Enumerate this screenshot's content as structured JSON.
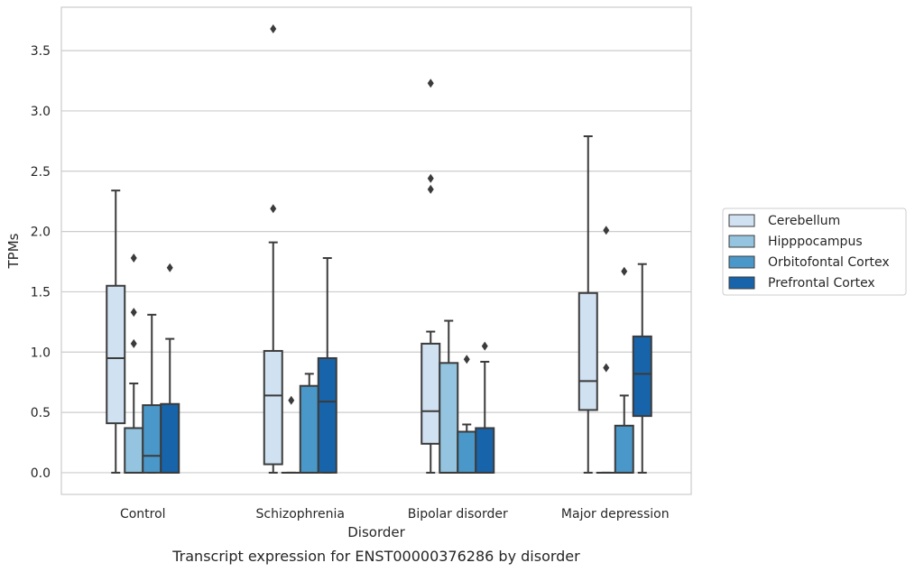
{
  "caption": "Transcript expression for ENST00000376286 by disorder",
  "chart_data": {
    "type": "box",
    "xlabel": "Disorder",
    "ylabel": "TPMs",
    "ylim": [
      -0.18,
      3.86
    ],
    "yticks": [
      "0.0",
      "0.5",
      "1.0",
      "1.5",
      "2.0",
      "2.5",
      "3.0",
      "3.5"
    ],
    "ytick_values": [
      0,
      0.5,
      1.0,
      1.5,
      2.0,
      2.5,
      3.0,
      3.5
    ],
    "grid": "horizontal",
    "legend_position": "right",
    "categories": [
      "Control",
      "Schizophrenia",
      "Bipolar disorder",
      "Major depression"
    ],
    "series": [
      {
        "name": "Cerebellum",
        "color": "#d0e1f2",
        "boxes": [
          {
            "whisker_low": 0.0,
            "q1": 0.41,
            "median": 0.95,
            "q3": 1.55,
            "whisker_high": 2.34,
            "outliers": []
          },
          {
            "whisker_low": 0.0,
            "q1": 0.07,
            "median": 0.64,
            "q3": 1.01,
            "whisker_high": 1.91,
            "outliers": [
              2.19,
              3.68
            ]
          },
          {
            "whisker_low": 0.0,
            "q1": 0.24,
            "median": 0.51,
            "q3": 1.07,
            "whisker_high": 1.17,
            "outliers": [
              2.35,
              2.44,
              3.23
            ]
          },
          {
            "whisker_low": 0.0,
            "q1": 0.52,
            "median": 0.76,
            "q3": 1.49,
            "whisker_high": 2.79,
            "outliers": []
          }
        ]
      },
      {
        "name": "Hipppocampus",
        "color": "#94c4df",
        "boxes": [
          {
            "whisker_low": 0.0,
            "q1": 0.0,
            "median": 0.0,
            "q3": 0.37,
            "whisker_high": 0.74,
            "outliers": [
              1.07,
              1.33,
              1.78
            ]
          },
          {
            "whisker_low": 0.0,
            "q1": 0.0,
            "median": 0.0,
            "q3": 0.0,
            "whisker_high": 0.0,
            "outliers": [
              0.6
            ]
          },
          {
            "whisker_low": 0.0,
            "q1": 0.0,
            "median": 0.0,
            "q3": 0.91,
            "whisker_high": 1.26,
            "outliers": []
          },
          {
            "whisker_low": 0.0,
            "q1": 0.0,
            "median": 0.0,
            "q3": 0.0,
            "whisker_high": 0.0,
            "outliers": [
              0.87,
              2.01
            ]
          }
        ]
      },
      {
        "name": "Orbitofontal Cortex",
        "color": "#4a98c9",
        "boxes": [
          {
            "whisker_low": 0.0,
            "q1": 0.0,
            "median": 0.14,
            "q3": 0.56,
            "whisker_high": 1.31,
            "outliers": []
          },
          {
            "whisker_low": 0.0,
            "q1": 0.0,
            "median": 0.0,
            "q3": 0.72,
            "whisker_high": 0.82,
            "outliers": []
          },
          {
            "whisker_low": 0.0,
            "q1": 0.0,
            "median": 0.0,
            "q3": 0.34,
            "whisker_high": 0.4,
            "outliers": [
              0.94
            ]
          },
          {
            "whisker_low": 0.0,
            "q1": 0.0,
            "median": 0.0,
            "q3": 0.39,
            "whisker_high": 0.64,
            "outliers": [
              1.67
            ]
          }
        ]
      },
      {
        "name": "Prefrontal Cortex",
        "color": "#1764ab",
        "boxes": [
          {
            "whisker_low": 0.0,
            "q1": 0.0,
            "median": 0.0,
            "q3": 0.57,
            "whisker_high": 1.11,
            "outliers": [
              1.7
            ]
          },
          {
            "whisker_low": 0.0,
            "q1": 0.0,
            "median": 0.59,
            "q3": 0.95,
            "whisker_high": 1.78,
            "outliers": []
          },
          {
            "whisker_low": 0.0,
            "q1": 0.0,
            "median": 0.0,
            "q3": 0.37,
            "whisker_high": 0.92,
            "outliers": [
              1.05
            ]
          },
          {
            "whisker_low": 0.0,
            "q1": 0.47,
            "median": 0.82,
            "q3": 1.13,
            "whisker_high": 1.73,
            "outliers": []
          }
        ]
      }
    ]
  }
}
